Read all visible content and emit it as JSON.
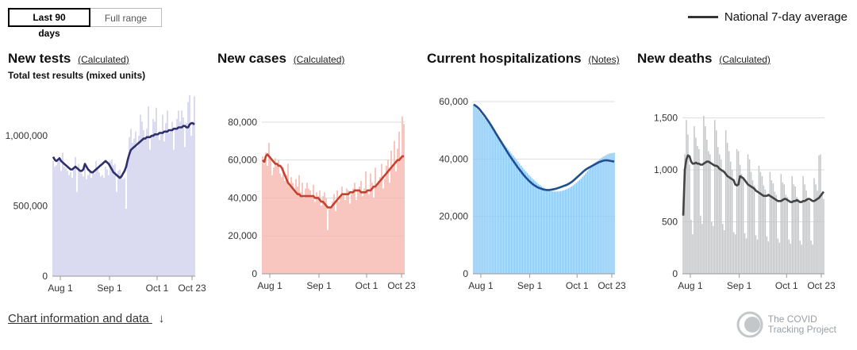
{
  "controls": {
    "active_label": "Last 90 days",
    "inactive_label": "Full range"
  },
  "legend": {
    "label": "National 7-day average"
  },
  "footer": {
    "link_text": "Chart information and data",
    "arrow": "↓"
  },
  "brand": {
    "line1": "The COVID",
    "line2": "Tracking Project"
  },
  "panels": [
    {
      "title": "New tests",
      "link": "(Calculated)",
      "subtitle": "Total test results (mixed units)"
    },
    {
      "title": "New cases",
      "link": "(Calculated)",
      "subtitle": ""
    },
    {
      "title": "Current hospitalizations",
      "link": "(Notes)",
      "subtitle": ""
    },
    {
      "title": "New deaths",
      "link": "(Calculated)",
      "subtitle": ""
    }
  ],
  "colors": {
    "tests_bar": "#cfcfeb",
    "tests_line": "#2f2f6e",
    "cases_bar": "#f5b5aa",
    "cases_line": "#c8402f",
    "hosp_bar": "#8ec8f2",
    "hosp_line": "#1f4f8f",
    "deaths_bar": "#c4c6c8",
    "deaths_line": "#444444",
    "grid": "#dddddd"
  },
  "chart_data": [
    {
      "type": "bar",
      "title": "New tests",
      "x_ticks": [
        "Aug 1",
        "Sep 1",
        "Oct 1",
        "Oct 23"
      ],
      "x_tick_days": [
        5,
        36,
        66,
        88
      ],
      "y_ticks": [
        0,
        500000,
        1000000
      ],
      "y_tick_labels": [
        "0",
        "500,000",
        "1,000,000"
      ],
      "ylim": [
        0,
        1300000
      ],
      "x_range_days": [
        0,
        90
      ],
      "series": [
        {
          "kind": "bars",
          "values": [
            820000,
            780000,
            790000,
            830000,
            840000,
            750000,
            880000,
            780000,
            770000,
            750000,
            720000,
            740000,
            700000,
            760000,
            850000,
            600000,
            800000,
            760000,
            730000,
            710000,
            800000,
            690000,
            720000,
            760000,
            700000,
            750000,
            730000,
            820000,
            780000,
            740000,
            710000,
            720000,
            700000,
            780000,
            760000,
            720000,
            820000,
            830000,
            790000,
            800000,
            600000,
            750000,
            760000,
            720000,
            690000,
            700000,
            480000,
            820000,
            990000,
            1050000,
            950000,
            980000,
            1030000,
            920000,
            1000000,
            1150000,
            1100000,
            1040000,
            980000,
            1050000,
            1210000,
            900000,
            1000000,
            1120000,
            1100000,
            1200000,
            1000000,
            970000,
            1030000,
            1150000,
            960000,
            1090000,
            1180000,
            1020000,
            1040000,
            1100000,
            900000,
            1050000,
            1120000,
            1180000,
            1100000,
            1180000,
            1130000,
            920000,
            1090000,
            1240000,
            1290000,
            1000000,
            1100000,
            1280000
          ]
        },
        {
          "kind": "line",
          "name": "National 7-day average",
          "values": [
            850000,
            830000,
            820000,
            830000,
            840000,
            820000,
            810000,
            800000,
            790000,
            780000,
            770000,
            760000,
            760000,
            770000,
            780000,
            770000,
            760000,
            750000,
            750000,
            760000,
            800000,
            780000,
            760000,
            750000,
            740000,
            740000,
            750000,
            760000,
            770000,
            780000,
            790000,
            800000,
            810000,
            820000,
            810000,
            800000,
            780000,
            760000,
            740000,
            730000,
            720000,
            710000,
            700000,
            710000,
            730000,
            750000,
            780000,
            830000,
            870000,
            900000,
            910000,
            920000,
            930000,
            940000,
            950000,
            960000,
            970000,
            980000,
            980000,
            990000,
            990000,
            990000,
            1000000,
            1000000,
            1010000,
            1010000,
            1010000,
            1020000,
            1020000,
            1020000,
            1030000,
            1030000,
            1030000,
            1040000,
            1040000,
            1040000,
            1050000,
            1050000,
            1050000,
            1060000,
            1060000,
            1060000,
            1070000,
            1070000,
            1060000,
            1060000,
            1080000,
            1090000,
            1090000,
            1080000
          ]
        }
      ]
    },
    {
      "type": "bar",
      "title": "New cases",
      "x_ticks": [
        "Aug 1",
        "Sep 1",
        "Oct 1",
        "Oct 23"
      ],
      "x_tick_days": [
        5,
        36,
        66,
        88
      ],
      "y_ticks": [
        0,
        20000,
        40000,
        60000,
        80000
      ],
      "y_tick_labels": [
        "0",
        "20,000",
        "40,000",
        "60,000",
        "80,000"
      ],
      "ylim": [
        0,
        90000
      ],
      "x_range_days": [
        0,
        90
      ],
      "series": [
        {
          "kind": "bars",
          "values": [
            62000,
            58000,
            64000,
            57000,
            69000,
            62000,
            52000,
            56000,
            61000,
            57000,
            60000,
            53000,
            51000,
            56000,
            49000,
            52000,
            58000,
            46000,
            51000,
            48000,
            44000,
            50000,
            46000,
            52000,
            43000,
            48000,
            40000,
            45000,
            48000,
            45000,
            44000,
            41000,
            47000,
            38000,
            43000,
            41000,
            44000,
            36000,
            41000,
            43000,
            40000,
            23000,
            34000,
            35000,
            38000,
            42000,
            33000,
            44000,
            38000,
            41000,
            46000,
            42000,
            39000,
            45000,
            44000,
            37000,
            42000,
            45000,
            48000,
            39000,
            44000,
            46000,
            49000,
            41000,
            45000,
            54000,
            44000,
            42000,
            53000,
            48000,
            40000,
            56000,
            46000,
            49000,
            51000,
            58000,
            45000,
            50000,
            57000,
            60000,
            48000,
            65000,
            56000,
            70000,
            54000,
            66000,
            75000,
            60000,
            83000,
            79000
          ]
        },
        {
          "kind": "line",
          "name": "National 7-day average",
          "values": [
            60000,
            59000,
            62000,
            63000,
            62000,
            61000,
            60000,
            59000,
            58000,
            58000,
            57000,
            57000,
            56000,
            54000,
            52000,
            50000,
            48000,
            47000,
            46000,
            45000,
            44000,
            43000,
            42000,
            42000,
            41000,
            41000,
            41000,
            41000,
            41000,
            41000,
            41000,
            41000,
            41000,
            40000,
            40000,
            40000,
            39000,
            38000,
            38000,
            37000,
            36000,
            35000,
            35000,
            35000,
            36000,
            37000,
            38000,
            39000,
            40000,
            41000,
            42000,
            42000,
            42000,
            42000,
            42000,
            43000,
            43000,
            43000,
            44000,
            44000,
            44000,
            44000,
            43000,
            43000,
            43000,
            43000,
            44000,
            44000,
            44000,
            45000,
            46000,
            46000,
            47000,
            48000,
            49000,
            50000,
            51000,
            52000,
            53000,
            54000,
            55000,
            56000,
            57000,
            58000,
            59000,
            60000,
            60000,
            61000,
            62000,
            62000
          ]
        }
      ]
    },
    {
      "type": "bar",
      "title": "Current hospitalizations",
      "x_ticks": [
        "Aug 1",
        "Sep 1",
        "Oct 1",
        "Oct 23"
      ],
      "x_tick_days": [
        5,
        36,
        66,
        88
      ],
      "y_ticks": [
        0,
        20000,
        40000,
        60000
      ],
      "y_tick_labels": [
        "0",
        "20,000",
        "40,000",
        "60,000"
      ],
      "ylim": [
        0,
        60000
      ],
      "x_range_days": [
        0,
        90
      ],
      "series": [
        {
          "kind": "bars",
          "values": [
            59000,
            58200,
            57600,
            57000,
            56300,
            55600,
            54900,
            54200,
            53500,
            52800,
            52000,
            51200,
            50500,
            49800,
            49000,
            48200,
            47500,
            46800,
            46100,
            45400,
            44700,
            44000,
            43300,
            42600,
            41900,
            41200,
            40500,
            39800,
            39100,
            38400,
            37700,
            37000,
            36300,
            35700,
            35100,
            34500,
            33900,
            33300,
            32800,
            32300,
            31800,
            31300,
            30900,
            30500,
            30100,
            29800,
            29500,
            29300,
            29100,
            28900,
            28800,
            28700,
            28700,
            28700,
            28700,
            28800,
            28900,
            29100,
            29300,
            29500,
            29800,
            30100,
            30400,
            30800,
            31200,
            31700,
            32200,
            32700,
            33200,
            33800,
            34400,
            35000,
            35700,
            36400,
            37100,
            37800,
            38300,
            38800,
            39200,
            39600,
            40000,
            40400,
            40800,
            41100,
            41400,
            41700,
            41900,
            42000,
            42100,
            42200
          ]
        },
        {
          "kind": "line",
          "name": "National 7-day average",
          "values": [
            59000,
            58600,
            58200,
            57700,
            57100,
            56400,
            55700,
            55000,
            54200,
            53400,
            52600,
            51700,
            50800,
            49900,
            49000,
            48100,
            47200,
            46300,
            45400,
            44500,
            43600,
            42700,
            41800,
            41000,
            40200,
            39400,
            38600,
            37800,
            37000,
            36300,
            35600,
            34900,
            34200,
            33600,
            33000,
            32400,
            31900,
            31400,
            31000,
            30600,
            30300,
            30000,
            29800,
            29600,
            29400,
            29300,
            29200,
            29200,
            29200,
            29300,
            29400,
            29500,
            29600,
            29800,
            30000,
            30200,
            30400,
            30600,
            30800,
            31000,
            31300,
            31600,
            32000,
            32400,
            32900,
            33400,
            33900,
            34400,
            34900,
            35400,
            35900,
            36300,
            36700,
            37000,
            37300,
            37600,
            37900,
            38200,
            38500,
            38800,
            39000,
            39200,
            39400,
            39500,
            39500,
            39500,
            39400,
            39300,
            39200,
            39100
          ]
        }
      ]
    },
    {
      "type": "bar",
      "title": "New deaths",
      "x_ticks": [
        "Aug 1",
        "Sep 1",
        "Oct 1",
        "Oct 23"
      ],
      "x_tick_days": [
        5,
        36,
        66,
        88
      ],
      "y_ticks": [
        0,
        500,
        1000,
        1500
      ],
      "y_tick_labels": [
        "0",
        "500",
        "1,000",
        "1,500"
      ],
      "ylim": [
        0,
        1550
      ],
      "x_range_days": [
        0,
        90
      ],
      "series": [
        {
          "kind": "bars",
          "values": [
            560,
            1150,
            1480,
            1340,
            1050,
            520,
            380,
            1420,
            1310,
            1230,
            1200,
            560,
            480,
            1520,
            1420,
            1290,
            1180,
            1150,
            500,
            460,
            1480,
            1380,
            1220,
            1150,
            1100,
            480,
            420,
            1380,
            1260,
            1180,
            1080,
            1000,
            400,
            380,
            1200,
            1180,
            1050,
            960,
            910,
            390,
            340,
            1150,
            1100,
            980,
            900,
            850,
            370,
            330,
            1040,
            980,
            940,
            850,
            810,
            360,
            310,
            980,
            900,
            870,
            790,
            760,
            340,
            300,
            960,
            880,
            860,
            760,
            740,
            330,
            290,
            940,
            860,
            840,
            740,
            720,
            320,
            280,
            940,
            860,
            800,
            720,
            700,
            320,
            280,
            920,
            860,
            800,
            1140,
            1150,
            780,
            720
          ]
        },
        {
          "kind": "line",
          "name": "National 7-day average",
          "values": [
            560,
            1000,
            1100,
            1140,
            1130,
            1080,
            1060,
            1060,
            1070,
            1060,
            1060,
            1050,
            1050,
            1060,
            1070,
            1080,
            1080,
            1070,
            1060,
            1050,
            1040,
            1040,
            1030,
            1010,
            1000,
            990,
            980,
            960,
            940,
            930,
            920,
            910,
            900,
            860,
            850,
            860,
            940,
            930,
            920,
            900,
            880,
            860,
            850,
            840,
            830,
            820,
            800,
            790,
            780,
            770,
            760,
            750,
            750,
            750,
            760,
            750,
            740,
            730,
            720,
            710,
            700,
            700,
            700,
            710,
            720,
            720,
            710,
            700,
            690,
            690,
            700,
            700,
            710,
            700,
            690,
            690,
            700,
            700,
            710,
            720,
            720,
            710,
            700,
            700,
            710,
            720,
            730,
            750,
            770,
            790
          ]
        }
      ]
    }
  ]
}
